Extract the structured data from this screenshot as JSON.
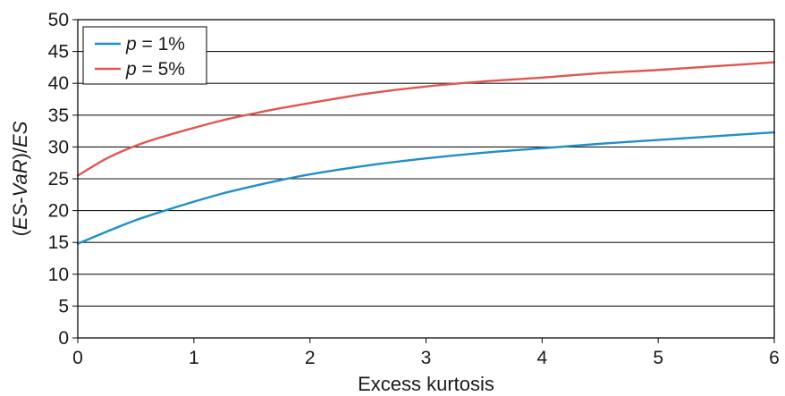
{
  "chart_data": {
    "type": "line",
    "xlabel": "Excess kurtosis",
    "ylabel_parts": [
      {
        "text": "(",
        "italic": false
      },
      {
        "text": "ES",
        "italic": true
      },
      {
        "text": "-",
        "italic": false
      },
      {
        "text": "VaR",
        "italic": true
      },
      {
        "text": ")/",
        "italic": false
      },
      {
        "text": "ES",
        "italic": true
      }
    ],
    "xlim": [
      0,
      6
    ],
    "ylim": [
      0,
      50
    ],
    "xticks": [
      "0",
      "1",
      "2",
      "3",
      "4",
      "5",
      "6"
    ],
    "yticks": [
      "0",
      "5",
      "10",
      "15",
      "20",
      "25",
      "30",
      "35",
      "40",
      "45",
      "50"
    ],
    "grid": "horizontal",
    "legend_position": "top-left",
    "series": [
      {
        "name_parts": [
          {
            "text": "p",
            "italic": true
          },
          {
            "text": " = 1%",
            "italic": false
          }
        ],
        "color": "#1f8fc8",
        "x": [
          0,
          0.25,
          0.5,
          0.75,
          1,
          1.25,
          1.5,
          1.75,
          2,
          2.5,
          3,
          3.5,
          4,
          4.5,
          5,
          5.5,
          6
        ],
        "y": [
          14.8,
          16.7,
          18.5,
          20.0,
          21.4,
          22.7,
          23.8,
          24.8,
          25.7,
          27.1,
          28.2,
          29.1,
          29.8,
          30.5,
          31.1,
          31.7,
          32.3
        ]
      },
      {
        "name_parts": [
          {
            "text": "p",
            "italic": true
          },
          {
            "text": " = 5%",
            "italic": false
          }
        ],
        "color": "#e2554f",
        "x": [
          0,
          0.25,
          0.5,
          0.75,
          1,
          1.25,
          1.5,
          1.75,
          2,
          2.5,
          3,
          3.5,
          4,
          4.5,
          5,
          5.5,
          6
        ],
        "y": [
          25.5,
          28.2,
          30.2,
          31.7,
          33.0,
          34.2,
          35.2,
          36.1,
          36.9,
          38.4,
          39.5,
          40.3,
          40.9,
          41.6,
          42.1,
          42.7,
          43.3
        ]
      }
    ]
  }
}
